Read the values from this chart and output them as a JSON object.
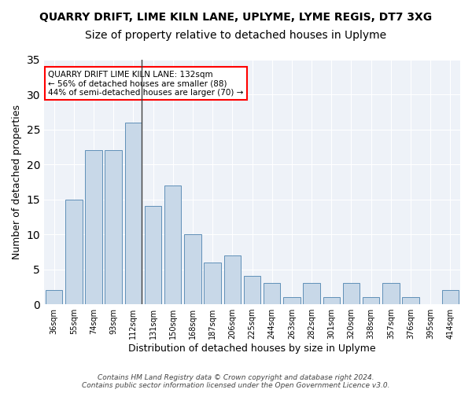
{
  "title": "QUARRY DRIFT, LIME KILN LANE, UPLYME, LYME REGIS, DT7 3XG",
  "subtitle": "Size of property relative to detached houses in Uplyme",
  "xlabel": "Distribution of detached houses by size in Uplyme",
  "ylabel": "Number of detached properties",
  "categories": [
    "36sqm",
    "55sqm",
    "74sqm",
    "93sqm",
    "112sqm",
    "131sqm",
    "150sqm",
    "168sqm",
    "187sqm",
    "206sqm",
    "225sqm",
    "244sqm",
    "263sqm",
    "282sqm",
    "301sqm",
    "320sqm",
    "338sqm",
    "357sqm",
    "376sqm",
    "395sqm",
    "414sqm"
  ],
  "values": [
    2,
    15,
    22,
    22,
    26,
    14,
    17,
    10,
    6,
    7,
    4,
    3,
    1,
    3,
    1,
    3,
    1,
    3,
    1,
    0,
    2
  ],
  "bar_color": "#c8d8e8",
  "bar_edge_color": "#6090b8",
  "highlight_bar_index": 4,
  "highlight_line_color": "#404040",
  "ylim": [
    0,
    35
  ],
  "yticks": [
    0,
    5,
    10,
    15,
    20,
    25,
    30,
    35
  ],
  "annotation_text_line1": "QUARRY DRIFT LIME KILN LANE: 132sqm",
  "annotation_text_line2": "← 56% of detached houses are smaller (88)",
  "annotation_text_line3": "44% of semi-detached houses are larger (70) →",
  "bg_color": "#eef2f8",
  "footer_line1": "Contains HM Land Registry data © Crown copyright and database right 2024.",
  "footer_line2": "Contains public sector information licensed under the Open Government Licence v3.0.",
  "title_fontsize": 10,
  "subtitle_fontsize": 10,
  "xlabel_fontsize": 9,
  "ylabel_fontsize": 9
}
